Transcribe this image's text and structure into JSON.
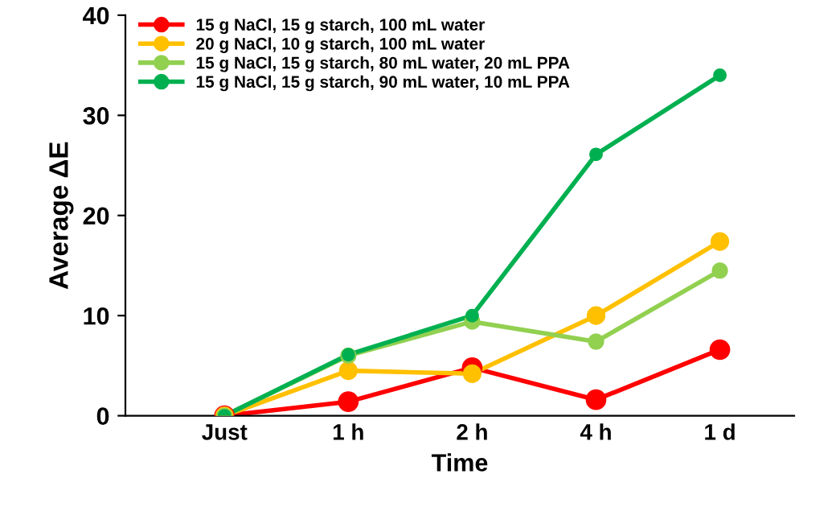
{
  "chart_data": {
    "type": "line",
    "xlabel": "Time",
    "ylabel": "Average ΔE",
    "categories": [
      "Just",
      "1 h",
      "2 h",
      "4 h",
      "1 d"
    ],
    "series": [
      {
        "name": "15 g NaCl, 15 g starch, 100 mL water",
        "color": "#ff0000",
        "values": [
          0,
          1.4,
          4.8,
          1.6,
          6.6
        ]
      },
      {
        "name": "20 g NaCl, 10 g starch, 100 mL water",
        "color": "#ffc000",
        "values": [
          0,
          4.5,
          4.2,
          10.0,
          17.4
        ]
      },
      {
        "name": "15 g NaCl, 15 g starch, 80 mL water, 20 mL PPA",
        "color": "#92d050",
        "values": [
          0,
          6.0,
          9.4,
          7.4,
          14.5
        ]
      },
      {
        "name": "15 g NaCl, 15 g starch, 90 mL water, 10 mL PPA",
        "color": "#00b050",
        "values": [
          0,
          6.1,
          10.0,
          26.1,
          34.0
        ]
      }
    ],
    "ylim": [
      0,
      40
    ],
    "yticks": [
      0,
      10,
      20,
      30,
      40
    ],
    "grid": false,
    "legend": "top left",
    "marker": "circle",
    "line_style": "solid"
  }
}
